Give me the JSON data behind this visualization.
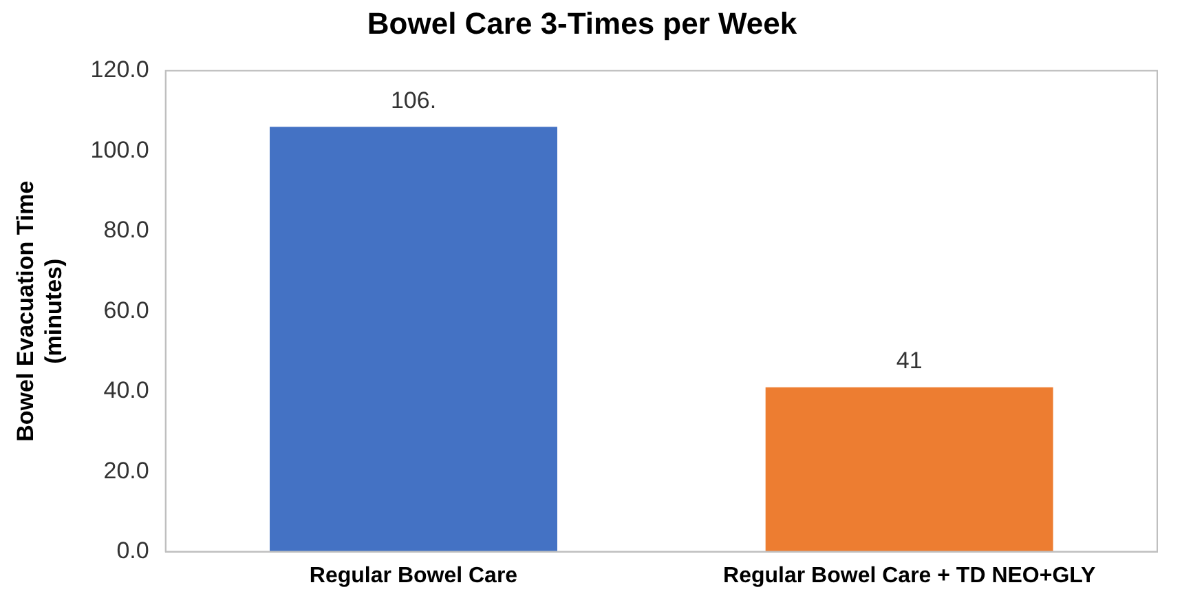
{
  "chart_data": {
    "type": "bar",
    "title": "Bowel Care 3-Times per Week",
    "ylabel": "Bowel Evacuation Time (minutes)",
    "categories": [
      "Regular Bowel Care",
      "Regular Bowel Care + TD NEO+GLY"
    ],
    "values": [
      106,
      41
    ],
    "colors": [
      "#4472c4",
      "#ed7d31"
    ],
    "value_labels": [
      "106.",
      "41"
    ],
    "ylim": [
      0,
      120
    ],
    "yticks": [
      {
        "value": 0,
        "label": "0.0"
      },
      {
        "value": 20,
        "label": "20.0"
      },
      {
        "value": 40,
        "label": "40.0"
      },
      {
        "value": 60,
        "label": "60.0"
      },
      {
        "value": 80,
        "label": "80.0"
      },
      {
        "value": 100,
        "label": "100.0"
      },
      {
        "value": 120,
        "label": "120.0"
      }
    ],
    "grid": false,
    "legend": false
  }
}
